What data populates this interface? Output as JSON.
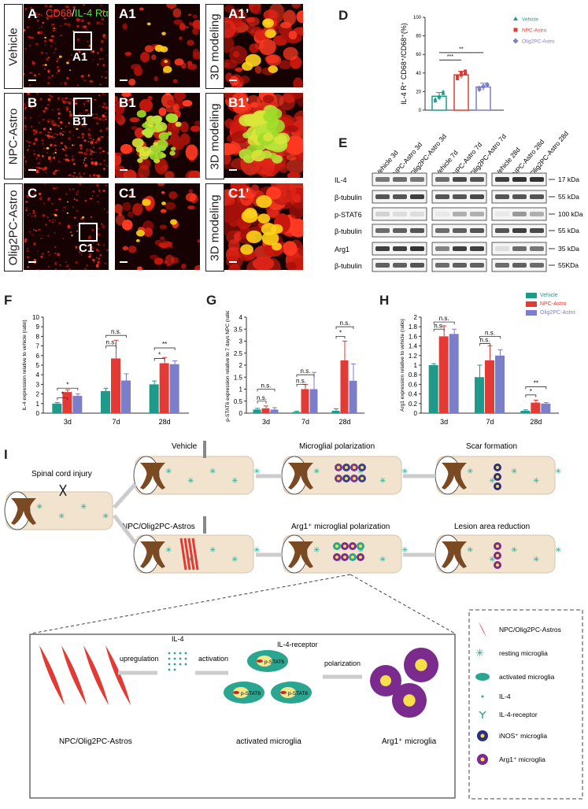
{
  "panelA": {
    "letters": [
      "A",
      "A1",
      "A1’",
      "B",
      "B1",
      "B1’",
      "C",
      "C1",
      "C1’"
    ],
    "rows": [
      "Vehicle",
      "NPC-Astro",
      "Olig2PC-Astro"
    ],
    "legend_cd68": "CD68",
    "legend_sep": "/",
    "legend_il4": "IL-4 Rα",
    "model_label": "3D modeling",
    "insets": [
      "A1",
      "B1",
      "C1"
    ]
  },
  "panelD": {
    "letter": "D",
    "ylabel": "IL-4 R⁺ CD68⁺/CD68⁺(%)",
    "yticks": [
      "0",
      "20",
      "40",
      "60",
      "80",
      "100"
    ],
    "legend": [
      "Vehicle",
      "NPC-Astro",
      "Olig2PC-Astro"
    ],
    "sig": [
      "***",
      "**"
    ]
  },
  "panelE": {
    "letter": "E",
    "lanes": [
      "Vehicle 3d",
      "NPC-Astro 3d",
      "Olig2PC-Astro 3d",
      "Vehicle 7d",
      "NPC-Astro 7d",
      "Olig2PC-Astro 7d",
      "Vehicle 28d",
      "NPC-Astro 28d",
      "Olig2PC-Astro 28d"
    ],
    "rows": [
      "IL-4",
      "β-tubulin",
      "p-STAT6",
      "β-tubulin",
      "Arg1",
      "β-tubulin"
    ],
    "kda": [
      "17 kDa",
      "55 kDa",
      "100 kDa",
      "55 kDa",
      "35 kDa",
      "55KDa"
    ]
  },
  "colors": {
    "vehicle": "#1f9a8a",
    "npc": "#e23a34",
    "olig": "#7b7fc9"
  },
  "charts": {
    "groups": [
      "3d",
      "7d",
      "28d"
    ],
    "legend": [
      "Vehicle",
      "NPC-Astro",
      "Olig2PC-Astro"
    ],
    "F": {
      "letter": "F",
      "ylabel": "IL-4 expression relative to vehicle (ratio)",
      "yticks": [
        "0",
        "1",
        "2",
        "3",
        "4",
        "5",
        "6",
        "7",
        "8",
        "9",
        "10"
      ]
    },
    "G": {
      "letter": "G",
      "ylabel": "p-STAT6 expression relative to 7 days NPC (ratio)",
      "yticks": [
        "0",
        "0.5",
        "1",
        "1.5",
        "2",
        "2.5",
        "3",
        "3.5",
        "4"
      ]
    },
    "H": {
      "letter": "H",
      "ylabel": "Arg1 expression relative to vehicle (ratio)",
      "yticks": [
        "0",
        "0.2",
        "0.4",
        "0.6",
        "0.8",
        "1",
        "1.2",
        "1.4",
        "1.6",
        "1.8",
        "2"
      ]
    },
    "ns": "n.s.",
    "star": "*",
    "dstar": "**"
  },
  "chart_data": [
    {
      "type": "bar",
      "title": "IL-4",
      "categories": [
        "3d",
        "7d",
        "28d"
      ],
      "ylim": [
        0,
        10
      ],
      "series": [
        {
          "name": "Vehicle",
          "values": [
            1.0,
            2.3,
            3.0
          ]
        },
        {
          "name": "NPC-Astro",
          "values": [
            2.2,
            5.7,
            5.2
          ]
        },
        {
          "name": "Olig2PC-Astro",
          "values": [
            1.8,
            3.4,
            5.1
          ]
        }
      ]
    },
    {
      "type": "bar",
      "title": "p-STAT6",
      "categories": [
        "3d",
        "7d",
        "28d"
      ],
      "ylim": [
        0,
        4
      ],
      "series": [
        {
          "name": "Vehicle",
          "values": [
            0.15,
            0.05,
            0.1
          ]
        },
        {
          "name": "NPC-Astro",
          "values": [
            0.2,
            1.0,
            2.2
          ]
        },
        {
          "name": "Olig2PC-Astro",
          "values": [
            0.15,
            1.0,
            1.35
          ]
        }
      ]
    },
    {
      "type": "bar",
      "title": "Arg1",
      "categories": [
        "3d",
        "7d",
        "28d"
      ],
      "ylim": [
        0,
        2
      ],
      "series": [
        {
          "name": "Vehicle",
          "values": [
            1.0,
            0.75,
            0.05
          ]
        },
        {
          "name": "NPC-Astro",
          "values": [
            1.6,
            1.1,
            0.22
          ]
        },
        {
          "name": "Olig2PC-Astro",
          "values": [
            1.65,
            1.2,
            0.2
          ]
        }
      ]
    },
    {
      "type": "scatter",
      "title": "D",
      "categories": [
        "Vehicle",
        "NPC-Astro",
        "Olig2PC-Astro"
      ],
      "ylim": [
        0,
        100
      ],
      "series": [
        {
          "name": "Vehicle",
          "values": [
            15
          ]
        },
        {
          "name": "NPC-Astro",
          "values": [
            38
          ]
        },
        {
          "name": "Olig2PC-Astro",
          "values": [
            25
          ]
        }
      ]
    }
  ],
  "panelI": {
    "letter": "I",
    "labels": {
      "sci": "Spinal cord injury",
      "vehicle": "Vehicle",
      "mpol": "Microglial polarization",
      "scar": "Scar formation",
      "npcol": "NPC/Olig2PC-Astros",
      "arg1pol": "Arg1⁺ microglial polarization",
      "lesion": "Lesion area reduction",
      "upreg": "upregulation",
      "il4": "IL-4",
      "activation": "activation",
      "il4r": "IL-4-receptor",
      "pstat": "p-STAT6",
      "polarization": "polarization",
      "astros": "NPC/Olig2PC-Astros",
      "activated": "activated microglia",
      "arg1m": "Arg1⁺ microglia"
    },
    "legend": [
      "NPC/Olig2PC-Astros",
      "resting microglia",
      "activated microglia",
      "IL-4",
      "IL-4-receptor",
      "iNOS⁺ microglia",
      "Arg1⁺ microglia"
    ]
  }
}
